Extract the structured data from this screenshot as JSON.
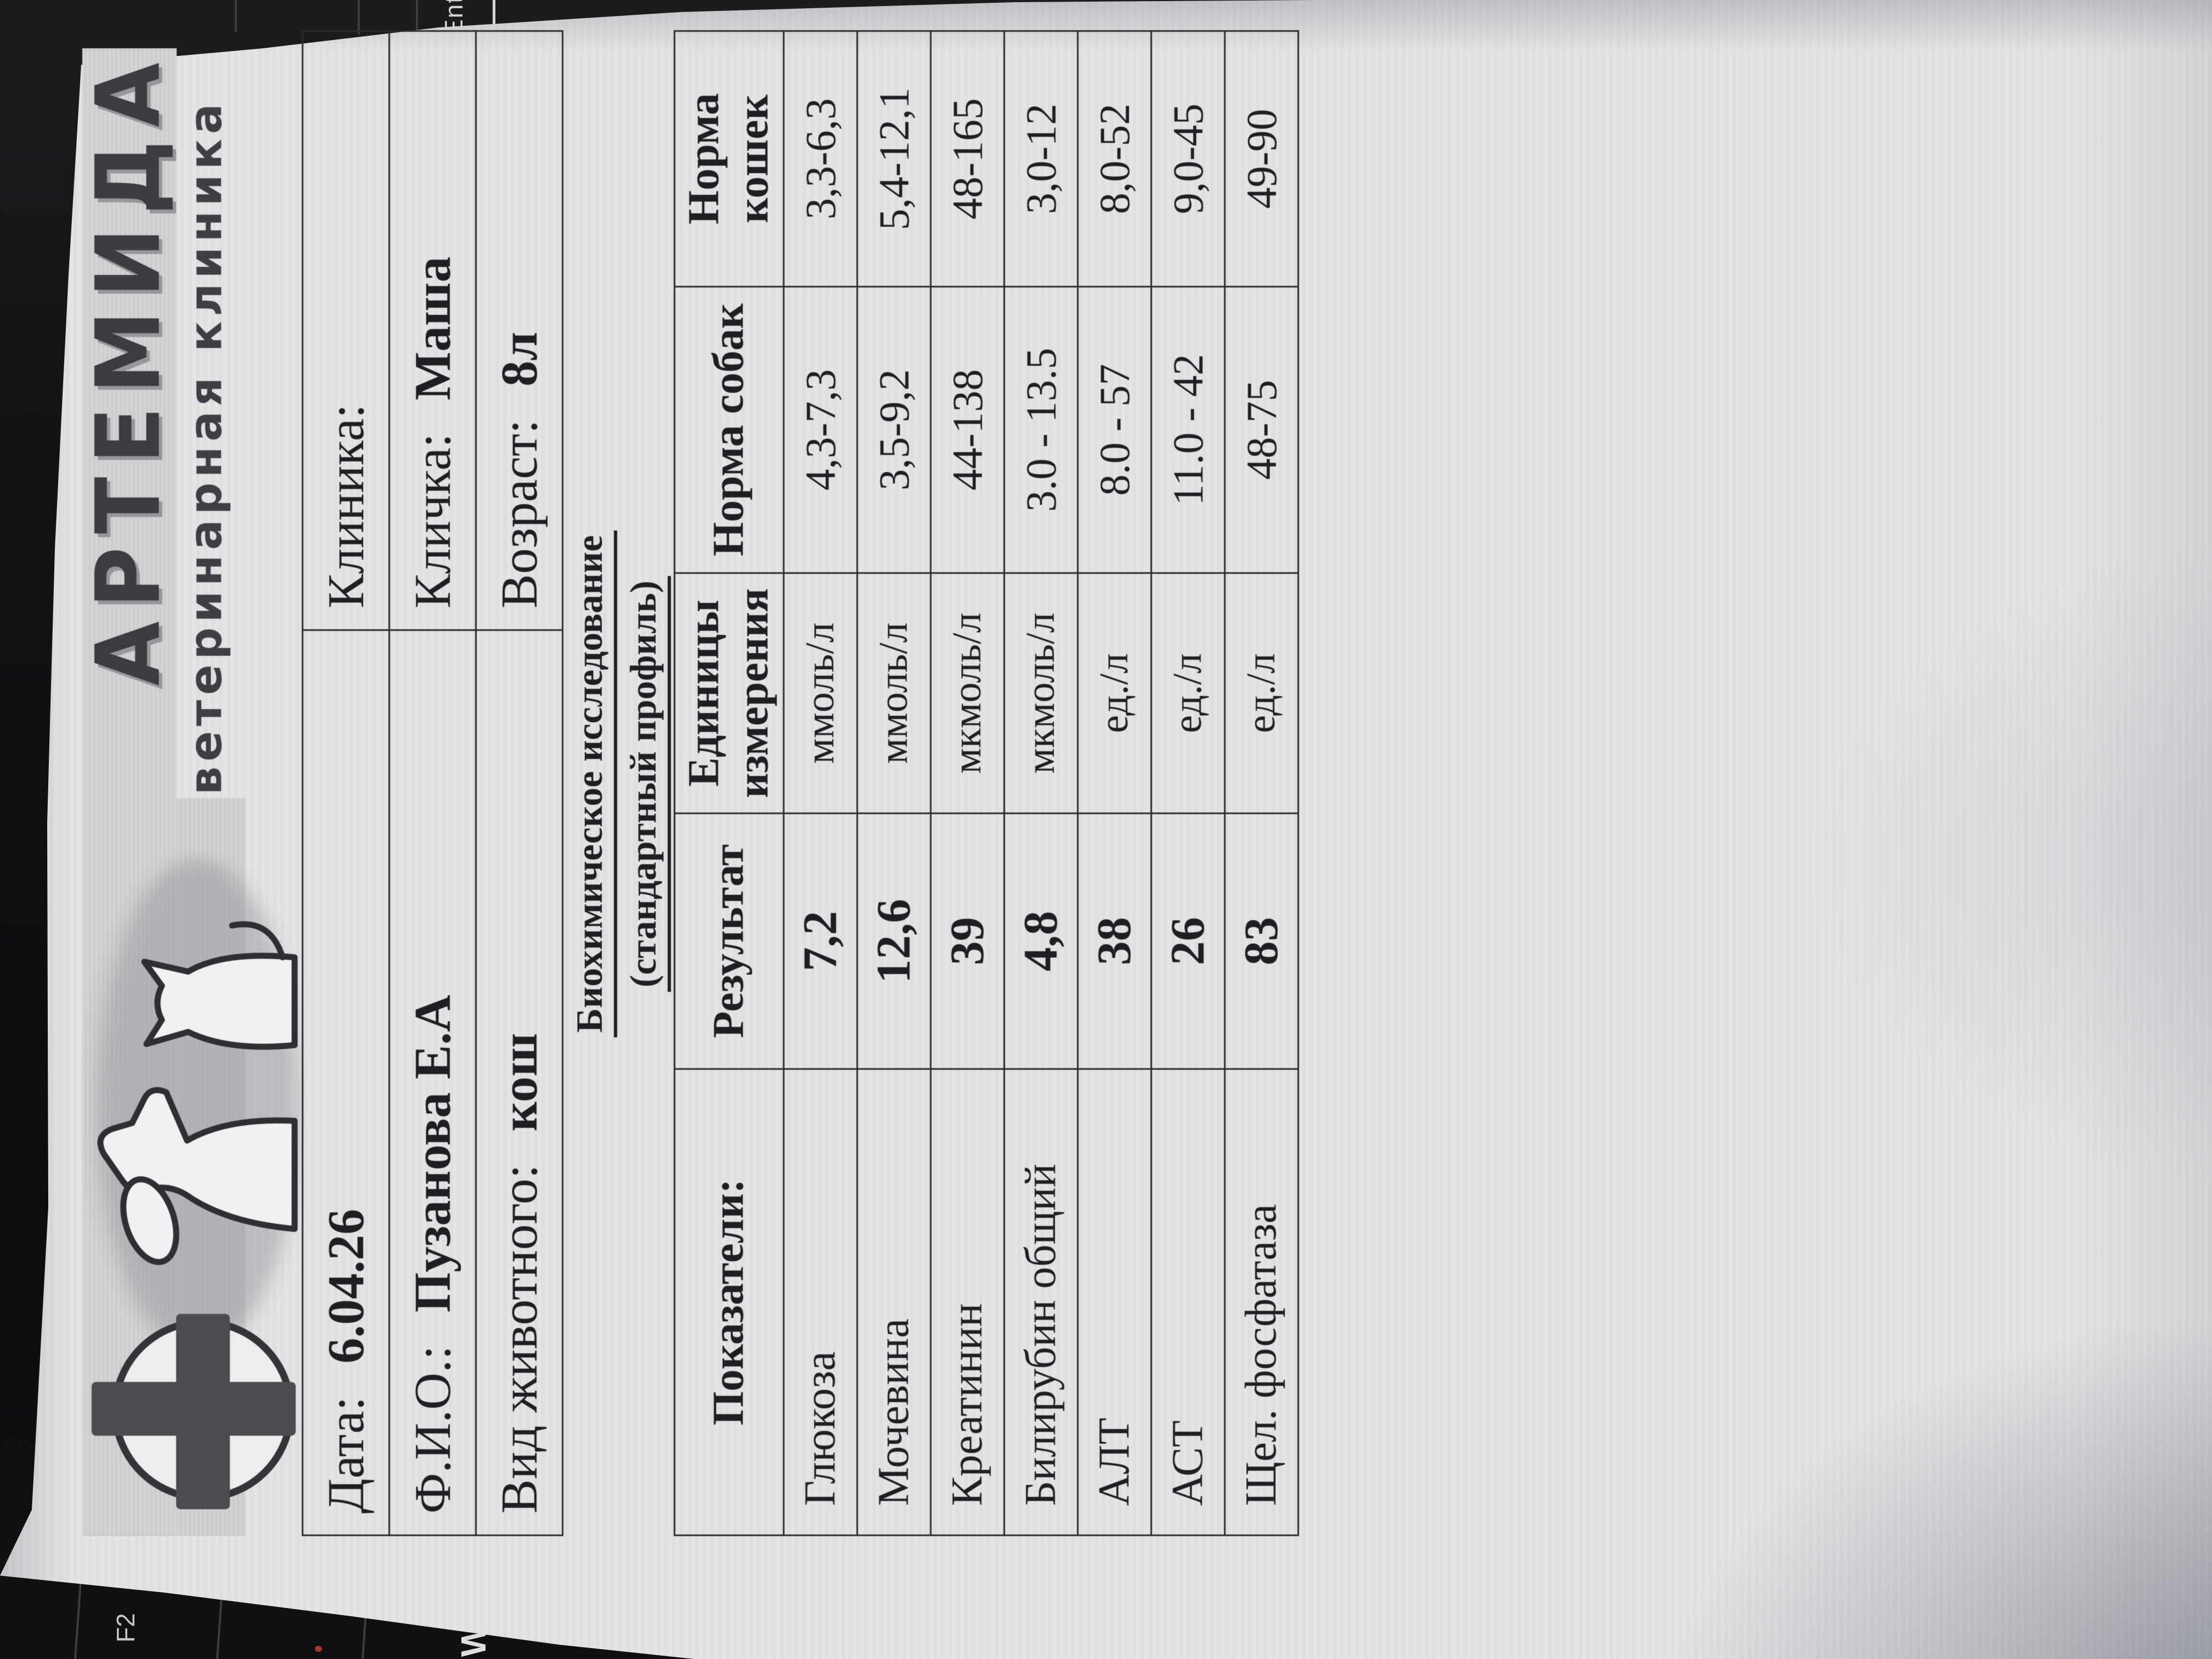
{
  "letterhead": {
    "brand": "АРТЕМИДА",
    "subtitle": "ветеринарная клиника"
  },
  "info_table": {
    "rows": [
      {
        "l_label": "Дата:",
        "l_value": "6.04.26",
        "r_label": "Клиника:",
        "r_value": ""
      },
      {
        "l_label": "Ф.И.О.:",
        "l_value": "Пузанова Е.А",
        "r_label": "Кличка:",
        "r_value": "Маша"
      },
      {
        "l_label": "Вид животного:",
        "l_value": "кош",
        "r_label": "Возраст:",
        "r_value": "8л"
      }
    ]
  },
  "title": {
    "line1": "Биохимическое исследование",
    "line2": "(стандартный профиль)"
  },
  "results_table": {
    "columns": [
      "Показатели:",
      "Результат",
      "Единицы измерения",
      "Норма собак",
      "Норма кошек"
    ],
    "rows": [
      [
        "Глюкоза",
        "7,2",
        "ммоль/л",
        "4,3-7,3",
        "3,3-6,3"
      ],
      [
        "Мочевина",
        "12,6",
        "ммоль/л",
        "3,5-9,2",
        "5,4-12,1"
      ],
      [
        "Креатинин",
        "39",
        "мкмоль/л",
        "44-138",
        "48-165"
      ],
      [
        "Билирубин общий",
        "4,8",
        "мкмоль/л",
        "3.0 - 13.5",
        "3,0-12"
      ],
      [
        "АЛТ",
        "38",
        "ед./л",
        "8.0 - 57",
        "8,0-52"
      ],
      [
        "АСТ",
        "26",
        "ед./л",
        "11.0 - 42",
        "9,0-45"
      ],
      [
        "Щел. фосфатаза",
        "83",
        "ед./л",
        "48-75",
        "49-90"
      ]
    ]
  },
  "keyboard": {
    "enter_key": "Ente",
    "f2_key": "F2",
    "w_key": "W"
  }
}
